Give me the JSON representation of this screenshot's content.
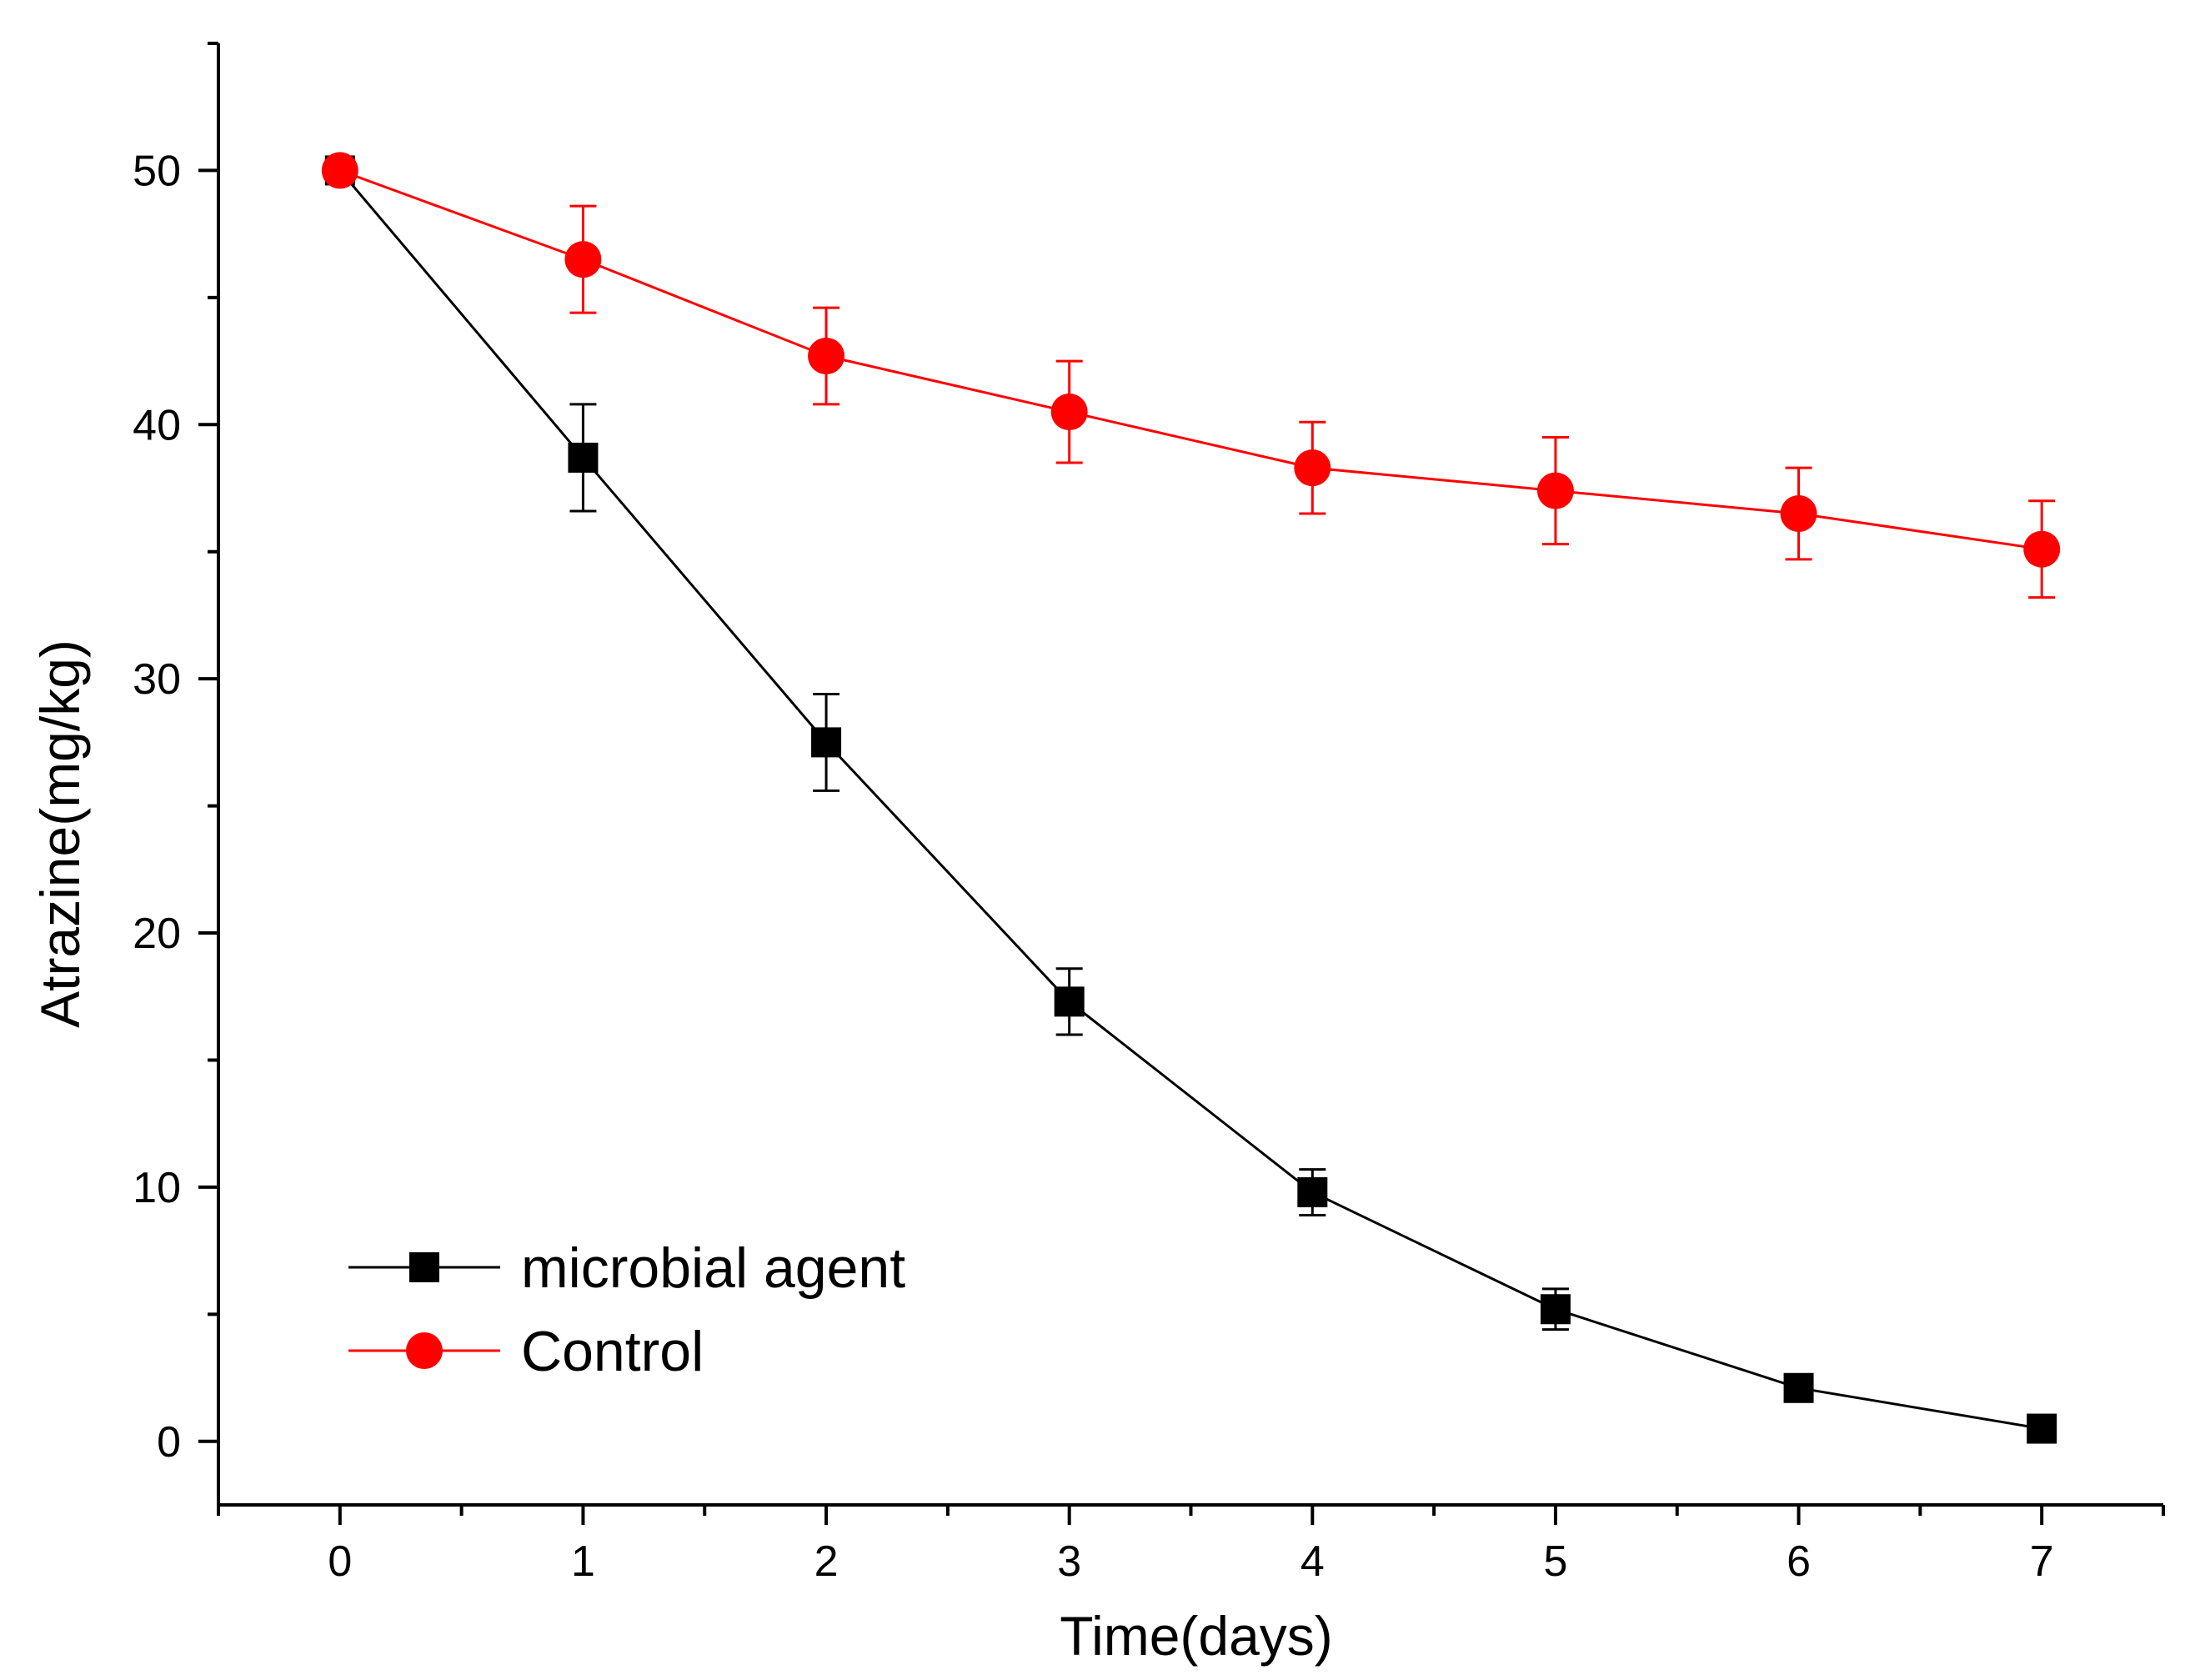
{
  "chart_data": {
    "type": "line",
    "title": "",
    "xlabel": "Time(days)",
    "ylabel": "Atrazine(mg/kg)",
    "xlim": [
      -0.5,
      7.5
    ],
    "ylim": [
      -2.5,
      55
    ],
    "x": [
      0,
      1,
      2,
      3,
      4,
      5,
      6,
      7
    ],
    "x_ticks": [
      "0",
      "1",
      "2",
      "3",
      "4",
      "5",
      "6",
      "7"
    ],
    "y_ticks": [
      "0",
      "10",
      "20",
      "30",
      "40",
      "50"
    ],
    "y_tick_values": [
      0,
      10,
      20,
      30,
      40,
      50
    ],
    "grid": false,
    "legend": "bottom-left",
    "series": [
      {
        "name": "microbial agent",
        "color": "#000000",
        "marker": "square",
        "values": [
          50.0,
          38.7,
          27.5,
          17.3,
          9.8,
          5.2,
          2.1,
          0.5
        ],
        "errors": [
          0.3,
          2.1,
          1.9,
          1.3,
          0.9,
          0.8,
          0.3,
          0.2
        ]
      },
      {
        "name": "Control",
        "color": "#ff0000",
        "marker": "circle",
        "values": [
          50.0,
          46.5,
          42.7,
          40.5,
          38.3,
          37.4,
          36.5,
          35.1
        ],
        "errors": [
          0.3,
          2.1,
          1.9,
          2.0,
          1.8,
          2.1,
          1.8,
          1.9
        ]
      }
    ]
  }
}
